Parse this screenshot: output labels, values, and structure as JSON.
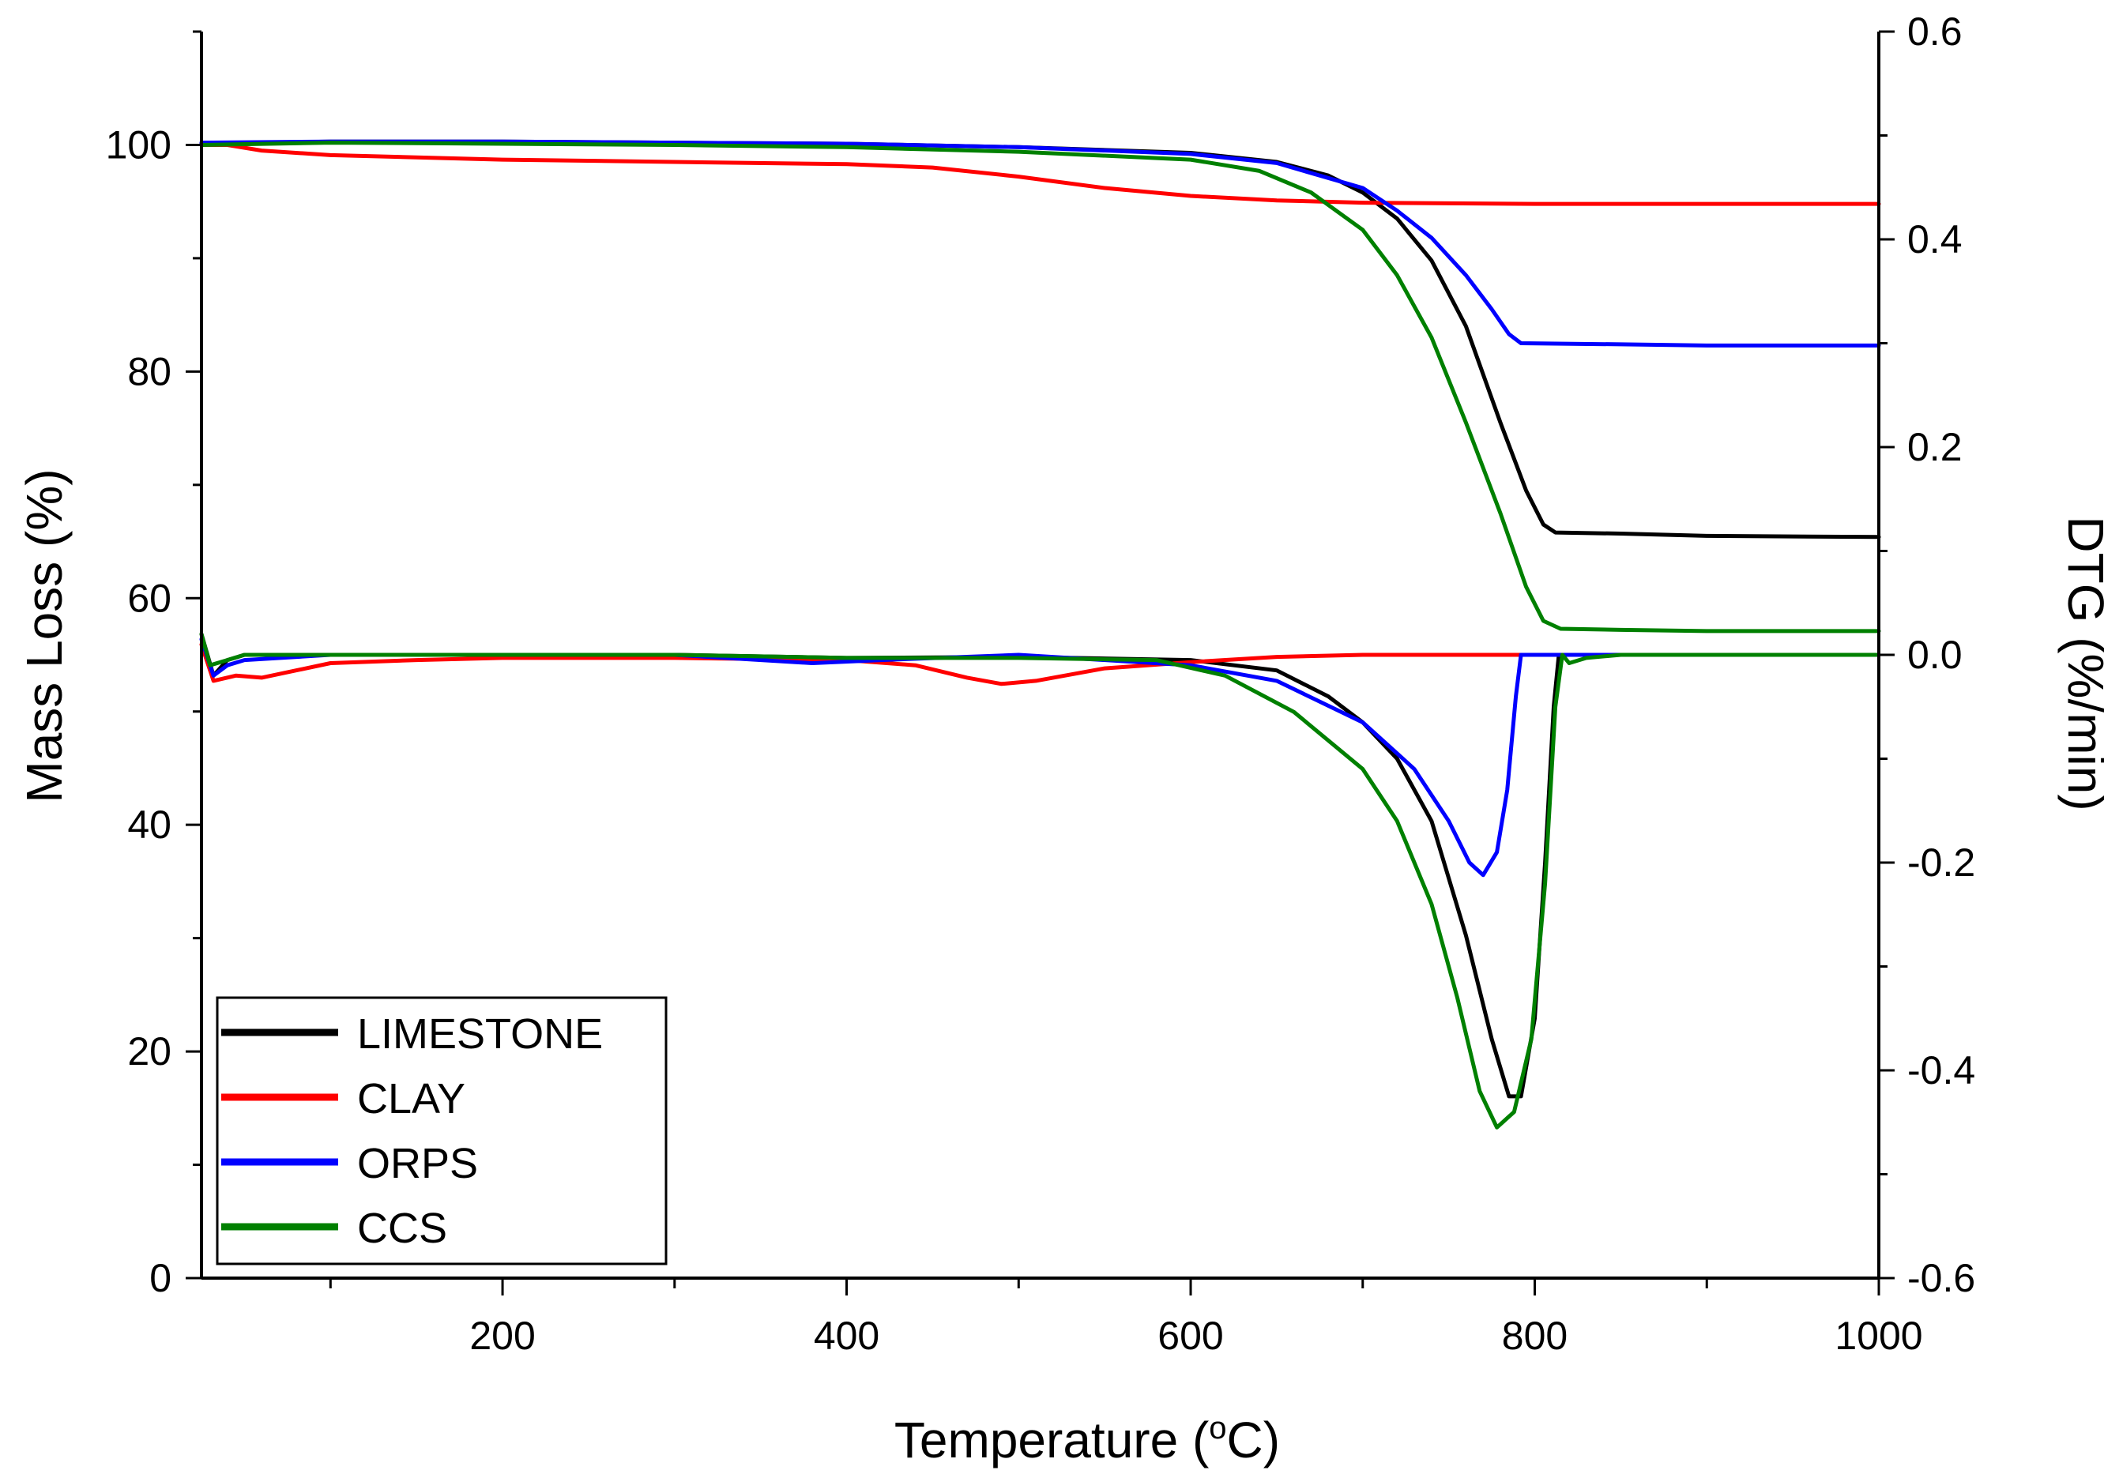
{
  "chart_data": {
    "type": "line",
    "xlabel": "Temperature (°C)",
    "xlabel_parts": {
      "pre": "Temperature (",
      "sup": "o",
      "post": "C)"
    },
    "ylabel": "Mass Loss (%)",
    "y2label": "DTG (%/min)",
    "xlim": [
      25,
      1000
    ],
    "ylim": [
      0,
      110
    ],
    "y2lim": [
      -0.6,
      0.6
    ],
    "xticks": [
      200,
      400,
      600,
      800,
      1000
    ],
    "xtick_labels": [
      "200",
      "400",
      "600",
      "800",
      "1000"
    ],
    "yticks": [
      0,
      20,
      40,
      60,
      80,
      100
    ],
    "ytick_labels": [
      "0",
      "20",
      "40",
      "60",
      "80",
      "100"
    ],
    "y2ticks": [
      -0.6,
      -0.4,
      -0.2,
      0.0,
      0.2,
      0.4,
      0.6
    ],
    "y2tick_labels": [
      "-0.6",
      "-0.4",
      "-0.2",
      "0.0",
      "0.2",
      "0.4",
      "0.6"
    ],
    "legend_position": "bottom-left",
    "series": [
      {
        "name": "LIMESTONE",
        "color": "#000000",
        "tg": [
          [
            25,
            100.1
          ],
          [
            100,
            100.3
          ],
          [
            200,
            100.3
          ],
          [
            300,
            100.2
          ],
          [
            400,
            100.1
          ],
          [
            500,
            99.8
          ],
          [
            600,
            99.3
          ],
          [
            650,
            98.5
          ],
          [
            680,
            97.3
          ],
          [
            700,
            95.8
          ],
          [
            720,
            93.5
          ],
          [
            740,
            89.8
          ],
          [
            760,
            84.0
          ],
          [
            780,
            75.5
          ],
          [
            795,
            69.5
          ],
          [
            805,
            66.5
          ],
          [
            812,
            65.8
          ],
          [
            850,
            65.7
          ],
          [
            900,
            65.5
          ],
          [
            1000,
            65.4
          ]
        ],
        "dtg": [
          [
            25,
            0.02
          ],
          [
            32,
            -0.02
          ],
          [
            40,
            -0.005
          ],
          [
            50,
            0.0
          ],
          [
            100,
            0.0
          ],
          [
            200,
            0.0
          ],
          [
            300,
            0.0
          ],
          [
            400,
            -0.003
          ],
          [
            500,
            -0.002
          ],
          [
            600,
            -0.005
          ],
          [
            650,
            -0.015
          ],
          [
            680,
            -0.04
          ],
          [
            700,
            -0.065
          ],
          [
            720,
            -0.1
          ],
          [
            740,
            -0.16
          ],
          [
            760,
            -0.27
          ],
          [
            775,
            -0.37
          ],
          [
            785,
            -0.425
          ],
          [
            792,
            -0.425
          ],
          [
            800,
            -0.35
          ],
          [
            806,
            -0.2
          ],
          [
            811,
            -0.05
          ],
          [
            814,
            0.0
          ],
          [
            850,
            0.0
          ],
          [
            1000,
            0.0
          ]
        ]
      },
      {
        "name": "CLAY",
        "color": "#ff0000",
        "tg": [
          [
            25,
            100.0
          ],
          [
            40,
            100.0
          ],
          [
            60,
            99.5
          ],
          [
            100,
            99.1
          ],
          [
            200,
            98.7
          ],
          [
            300,
            98.5
          ],
          [
            400,
            98.3
          ],
          [
            450,
            98.0
          ],
          [
            500,
            97.2
          ],
          [
            550,
            96.2
          ],
          [
            600,
            95.5
          ],
          [
            650,
            95.1
          ],
          [
            700,
            94.9
          ],
          [
            800,
            94.8
          ],
          [
            900,
            94.8
          ],
          [
            1000,
            94.8
          ]
        ],
        "dtg": [
          [
            25,
            0.01
          ],
          [
            32,
            -0.025
          ],
          [
            45,
            -0.02
          ],
          [
            60,
            -0.022
          ],
          [
            80,
            -0.015
          ],
          [
            100,
            -0.008
          ],
          [
            150,
            -0.005
          ],
          [
            200,
            -0.003
          ],
          [
            300,
            -0.003
          ],
          [
            400,
            -0.005
          ],
          [
            440,
            -0.01
          ],
          [
            470,
            -0.022
          ],
          [
            490,
            -0.028
          ],
          [
            510,
            -0.025
          ],
          [
            550,
            -0.013
          ],
          [
            600,
            -0.007
          ],
          [
            650,
            -0.002
          ],
          [
            700,
            0.0
          ],
          [
            800,
            0.0
          ],
          [
            1000,
            0.0
          ]
        ]
      },
      {
        "name": "ORPS",
        "color": "#0000ff",
        "tg": [
          [
            25,
            100.2
          ],
          [
            100,
            100.3
          ],
          [
            200,
            100.3
          ],
          [
            300,
            100.2
          ],
          [
            400,
            100.1
          ],
          [
            500,
            99.8
          ],
          [
            600,
            99.2
          ],
          [
            650,
            98.4
          ],
          [
            700,
            96.2
          ],
          [
            720,
            94.2
          ],
          [
            740,
            91.8
          ],
          [
            760,
            88.5
          ],
          [
            775,
            85.5
          ],
          [
            785,
            83.3
          ],
          [
            792,
            82.5
          ],
          [
            850,
            82.4
          ],
          [
            900,
            82.3
          ],
          [
            1000,
            82.3
          ]
        ],
        "dtg": [
          [
            25,
            0.015
          ],
          [
            32,
            -0.02
          ],
          [
            40,
            -0.01
          ],
          [
            50,
            -0.005
          ],
          [
            100,
            0.0
          ],
          [
            200,
            0.0
          ],
          [
            300,
            0.0
          ],
          [
            380,
            -0.008
          ],
          [
            420,
            -0.005
          ],
          [
            500,
            0.0
          ],
          [
            600,
            -0.01
          ],
          [
            650,
            -0.025
          ],
          [
            700,
            -0.065
          ],
          [
            730,
            -0.11
          ],
          [
            750,
            -0.16
          ],
          [
            762,
            -0.2
          ],
          [
            770,
            -0.212
          ],
          [
            778,
            -0.19
          ],
          [
            784,
            -0.13
          ],
          [
            789,
            -0.04
          ],
          [
            792,
            0.0
          ],
          [
            850,
            0.0
          ],
          [
            1000,
            0.0
          ]
        ]
      },
      {
        "name": "CCS",
        "color": "#008000",
        "tg": [
          [
            25,
            100.0
          ],
          [
            100,
            100.2
          ],
          [
            200,
            100.1
          ],
          [
            300,
            100.0
          ],
          [
            400,
            99.8
          ],
          [
            500,
            99.4
          ],
          [
            600,
            98.7
          ],
          [
            640,
            97.7
          ],
          [
            670,
            95.8
          ],
          [
            700,
            92.5
          ],
          [
            720,
            88.5
          ],
          [
            740,
            83.0
          ],
          [
            760,
            75.5
          ],
          [
            780,
            67.5
          ],
          [
            795,
            61.0
          ],
          [
            805,
            58.0
          ],
          [
            815,
            57.3
          ],
          [
            850,
            57.2
          ],
          [
            900,
            57.1
          ],
          [
            1000,
            57.1
          ]
        ],
        "dtg": [
          [
            25,
            0.02
          ],
          [
            30,
            -0.01
          ],
          [
            40,
            -0.005
          ],
          [
            50,
            0.0
          ],
          [
            100,
            0.0
          ],
          [
            200,
            0.0
          ],
          [
            300,
            0.0
          ],
          [
            400,
            -0.003
          ],
          [
            500,
            -0.003
          ],
          [
            580,
            -0.005
          ],
          [
            620,
            -0.02
          ],
          [
            660,
            -0.055
          ],
          [
            700,
            -0.11
          ],
          [
            720,
            -0.16
          ],
          [
            740,
            -0.24
          ],
          [
            755,
            -0.33
          ],
          [
            768,
            -0.42
          ],
          [
            778,
            -0.455
          ],
          [
            788,
            -0.44
          ],
          [
            798,
            -0.37
          ],
          [
            806,
            -0.22
          ],
          [
            812,
            -0.05
          ],
          [
            816,
            0.0
          ],
          [
            820,
            -0.008
          ],
          [
            830,
            -0.003
          ],
          [
            850,
            0.0
          ],
          [
            1000,
            0.0
          ]
        ]
      }
    ]
  }
}
